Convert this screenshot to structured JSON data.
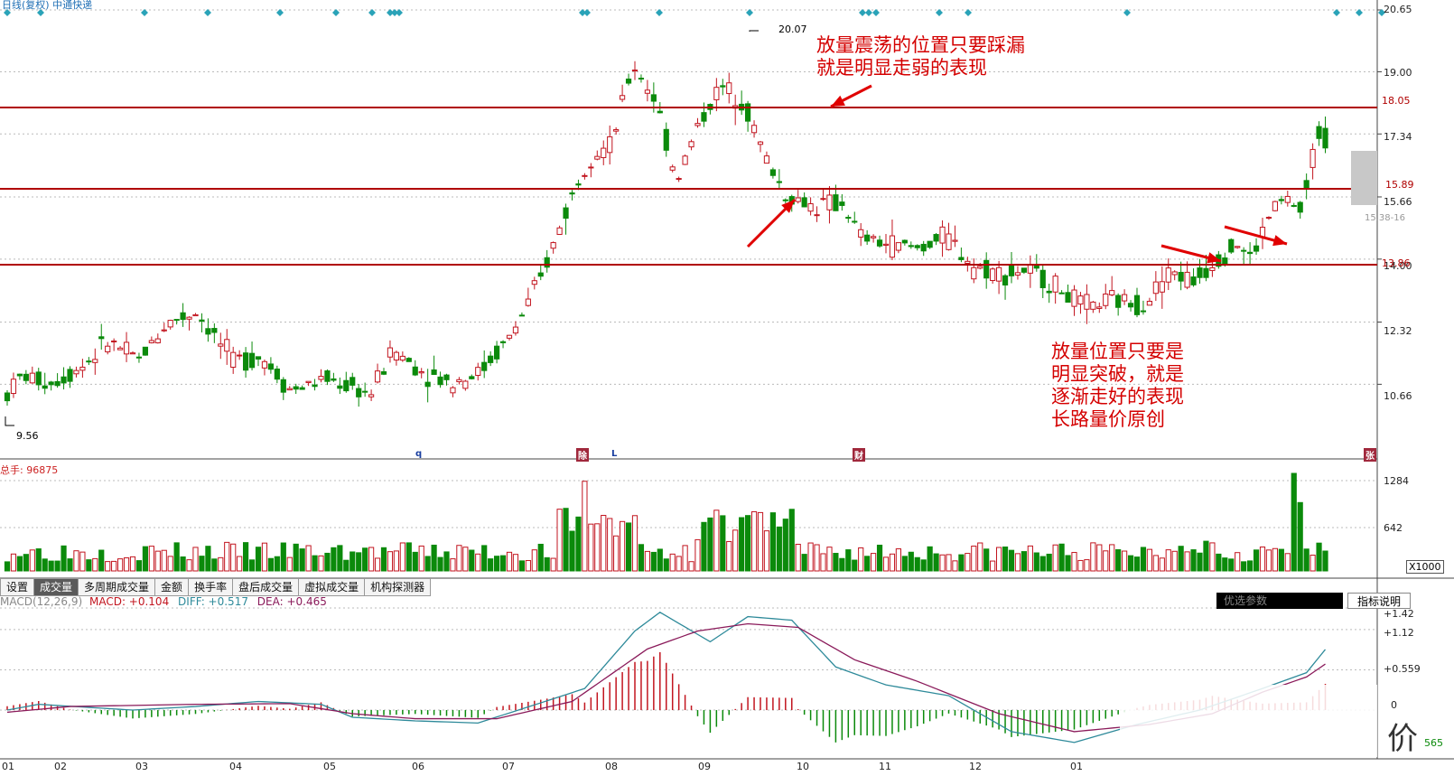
{
  "window": {
    "title": "日线(复权) 中通快递"
  },
  "price_axis": {
    "ticks": [
      "20.65",
      "19.00",
      "17.34",
      "15.66",
      "14.00",
      "12.32",
      "10.66"
    ]
  },
  "volume_axis": {
    "ticks": [
      "1284",
      "642"
    ],
    "unit": "X1000"
  },
  "macd_axis": {
    "ticks": [
      "+1.42",
      "+1.12",
      "+0.559",
      "0",
      "565"
    ]
  },
  "x_axis": {
    "labels": [
      "01",
      "02",
      "03",
      "04",
      "05",
      "06",
      "07",
      "08",
      "09",
      "10",
      "11",
      "12",
      "01"
    ]
  },
  "price_labels": {
    "high": "20.07",
    "low": "9.56",
    "level_top": "18.05",
    "level_mid": "15.89",
    "level_bottom": "13.86",
    "current": "15.38-16"
  },
  "annotations": {
    "top_line1": "放量震荡的位置只要踩漏",
    "top_line2": "就是明显走弱的表现",
    "bottom_line1": "放量位置只要是",
    "bottom_line2": "明显突破，就是",
    "bottom_line3": "逐渐走好的表现",
    "bottom_line4": "长路量价原创"
  },
  "event_markers": [
    "q",
    "除",
    "L",
    "财",
    "张"
  ],
  "volume_legend": "总手: 96875",
  "tabs": [
    "设置",
    "成交量",
    "多周期成交量",
    "金额",
    "换手率",
    "盘后成交量",
    "虚拟成交量",
    "机构探测器"
  ],
  "macd_legend": {
    "name": "MACD(12,26,9)",
    "macd": "MACD: +0.104",
    "diff": "DIFF: +0.517",
    "dea": "DEA: +0.465"
  },
  "panel_controls": {
    "params": "优选参数",
    "explain": "指标说明"
  },
  "watermark": "价",
  "colors": {
    "up": "#c2151f",
    "down": "#0b8a0b",
    "level_line": "#b00000",
    "diff": "#2e8a9a",
    "dea": "#8a1a5a",
    "diamond": "#2aa3b8"
  },
  "chart_data": {
    "type": "candlestick",
    "price_range": [
      9.56,
      20.65
    ],
    "levels": [
      18.05,
      15.89,
      13.86
    ],
    "anchors": [
      [
        0,
        10.4
      ],
      [
        10,
        10.9
      ],
      [
        30,
        10.7
      ],
      [
        50,
        11.1
      ],
      [
        70,
        11.8
      ],
      [
        90,
        11.3
      ],
      [
        110,
        12.3
      ],
      [
        130,
        12.6
      ],
      [
        155,
        11.3
      ],
      [
        175,
        11.4
      ],
      [
        195,
        10.5
      ],
      [
        220,
        10.8
      ],
      [
        250,
        10.4
      ],
      [
        265,
        11.6
      ],
      [
        285,
        11.0
      ],
      [
        305,
        10.7
      ],
      [
        325,
        11.0
      ],
      [
        345,
        11.9
      ],
      [
        365,
        13.3
      ],
      [
        385,
        15.4
      ],
      [
        400,
        16.8
      ],
      [
        415,
        17.0
      ],
      [
        430,
        19.2
      ],
      [
        445,
        18.3
      ],
      [
        460,
        16.1
      ],
      [
        475,
        17.6
      ],
      [
        490,
        18.6
      ],
      [
        505,
        18.3
      ],
      [
        520,
        16.8
      ],
      [
        535,
        15.7
      ],
      [
        555,
        15.4
      ],
      [
        575,
        15.5
      ],
      [
        585,
        14.6
      ],
      [
        605,
        14.4
      ],
      [
        625,
        14.3
      ],
      [
        645,
        14.6
      ],
      [
        665,
        13.8
      ],
      [
        685,
        13.6
      ],
      [
        700,
        13.7
      ],
      [
        720,
        13.3
      ],
      [
        740,
        12.7
      ],
      [
        760,
        12.9
      ],
      [
        780,
        12.8
      ],
      [
        800,
        13.7
      ],
      [
        815,
        13.4
      ],
      [
        830,
        14.0
      ],
      [
        845,
        14.4
      ],
      [
        855,
        14.0
      ],
      [
        870,
        15.4
      ],
      [
        880,
        15.6
      ],
      [
        890,
        15.2
      ],
      [
        900,
        17.4
      ],
      [
        905,
        17.2
      ],
      [
        910,
        17.4
      ]
    ],
    "volume_range": [
      0,
      1284
    ],
    "macd_range": [
      -0.565,
      1.42
    ],
    "macd_current": {
      "macd": 0.104,
      "diff": 0.517,
      "dea": 0.465
    }
  }
}
